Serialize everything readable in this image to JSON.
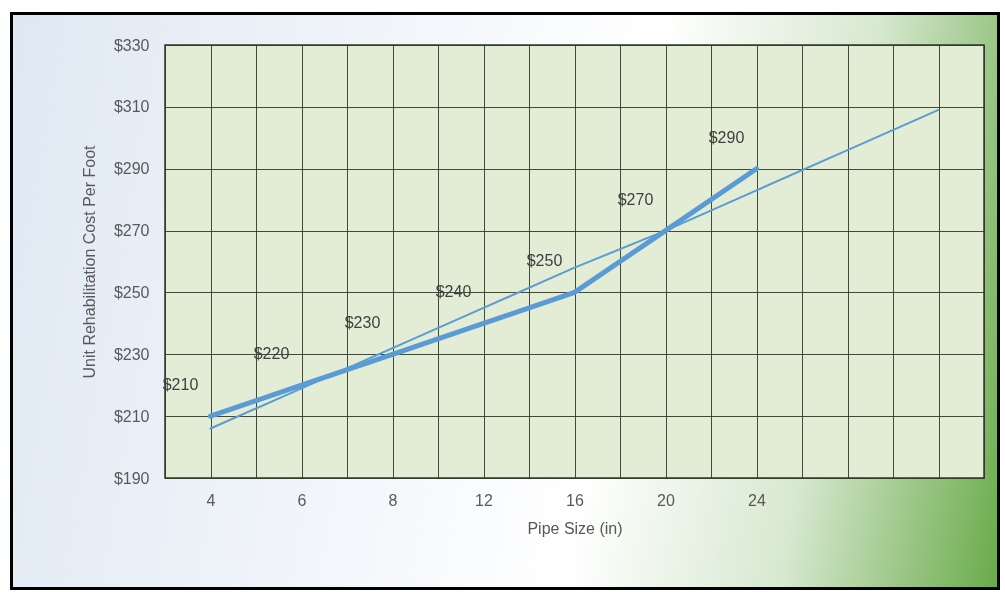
{
  "chart_data": {
    "type": "line",
    "xlabel": "Pipe Size (in)",
    "ylabel": "Unit Rehabilitation Cost Per Foot",
    "categories": [
      "4",
      "6",
      "8",
      "12",
      "16",
      "20",
      "24",
      null,
      null
    ],
    "series": [
      {
        "color": "#5b9bd5",
        "values": [
          210,
          220,
          230,
          240,
          250,
          270,
          290,
          null,
          null
        ],
        "value_labels": [
          "$210",
          "$220",
          "$230",
          "$240",
          "$250",
          "$270",
          "$290",
          null,
          null
        ]
      },
      {
        "type": "line",
        "color": "#5b9bd5",
        "values": [
          206,
          219,
          232,
          245,
          258,
          270,
          283,
          296,
          309
        ]
      }
    ],
    "ylim": [
      190,
      330
    ],
    "yticks": [
      {
        "value": 190,
        "label": "$190"
      },
      {
        "value": 210,
        "label": "$210"
      },
      {
        "value": 230,
        "label": "$230"
      },
      {
        "value": 250,
        "label": "$250"
      },
      {
        "value": 270,
        "label": "$270"
      },
      {
        "value": 290,
        "label": "$290"
      },
      {
        "value": 310,
        "label": "$310"
      },
      {
        "value": 330,
        "label": "$330"
      }
    ],
    "grid": true,
    "marker": "none",
    "line_style": "solid"
  }
}
